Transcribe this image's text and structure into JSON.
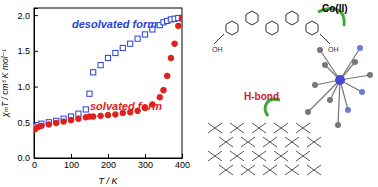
{
  "chart_data": {
    "type": "scatter",
    "x_label": "T / K",
    "y_label": "χₘT / cm³ K mol⁻¹",
    "x": [
      2,
      10,
      20,
      40,
      60,
      80,
      100,
      120,
      140,
      150,
      160,
      180,
      200,
      220,
      240,
      260,
      280,
      300,
      320,
      340,
      350,
      360,
      370,
      380,
      390,
      400
    ],
    "series": [
      {
        "name": "desolvated form",
        "color": "#2a3fd6",
        "marker": "open-square",
        "values": [
          0.44,
          0.46,
          0.48,
          0.5,
          0.52,
          0.55,
          0.58,
          0.62,
          0.68,
          0.9,
          1.2,
          1.3,
          1.4,
          1.47,
          1.54,
          1.6,
          1.67,
          1.73,
          1.8,
          1.86,
          1.9,
          1.92,
          1.94,
          1.95,
          1.96,
          1.96
        ]
      },
      {
        "name": "solvated form",
        "color": "#e0201b",
        "marker": "filled-circle",
        "values": [
          0.4,
          0.43,
          0.45,
          0.47,
          0.49,
          0.51,
          0.53,
          0.55,
          0.57,
          0.58,
          0.58,
          0.59,
          0.6,
          0.61,
          0.63,
          0.64,
          0.66,
          0.7,
          0.75,
          0.85,
          0.95,
          1.15,
          1.4,
          1.6,
          1.85,
          1.95
        ]
      }
    ],
    "xlim": [
      0,
      400
    ],
    "xticks": [
      0,
      100,
      200,
      300,
      400
    ],
    "ylim": [
      0,
      2.1
    ],
    "yticks": [
      {
        "value": 0,
        "label": "0.0"
      },
      0.5,
      {
        "value": 1,
        "label": "1.0"
      },
      1.5,
      {
        "value": 2,
        "label": "2.0"
      }
    ],
    "annotations": [
      "Co(II)",
      "H-bond",
      "OH",
      "OH"
    ]
  }
}
